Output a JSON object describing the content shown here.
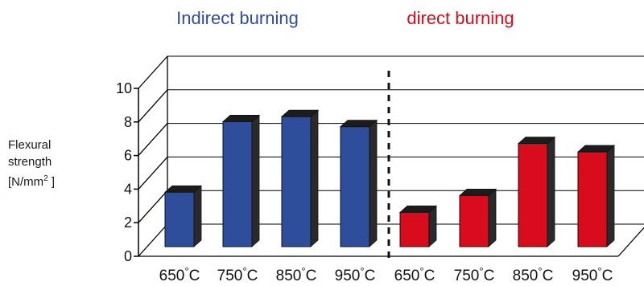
{
  "chart_data": {
    "type": "bar",
    "groups": [
      {
        "title": "Indirect burning",
        "color": "#2e4d9a"
      },
      {
        "title": "direct burning",
        "color": "#d80c1c"
      }
    ],
    "categories": [
      "650°C",
      "750°C",
      "850°C",
      "950°C",
      "650°C",
      "750°C",
      "850°C",
      "950°C"
    ],
    "values": [
      4.2,
      8.4,
      8.7,
      8.1,
      3.0,
      4.0,
      7.1,
      6.6
    ],
    "bar_groups": [
      0,
      0,
      0,
      0,
      1,
      1,
      1,
      1
    ],
    "yticks": [
      "0",
      "2",
      "4",
      "6",
      "8",
      "10"
    ],
    "ylim": [
      0,
      10
    ],
    "ylabel": {
      "line1": "Flexural",
      "line2": "strength",
      "line3_prefix": "[N/mm",
      "line3_sup": "2",
      "line3_suffix": " ]"
    },
    "grid": true,
    "style": "3d",
    "divider": "dashed line between groups"
  }
}
